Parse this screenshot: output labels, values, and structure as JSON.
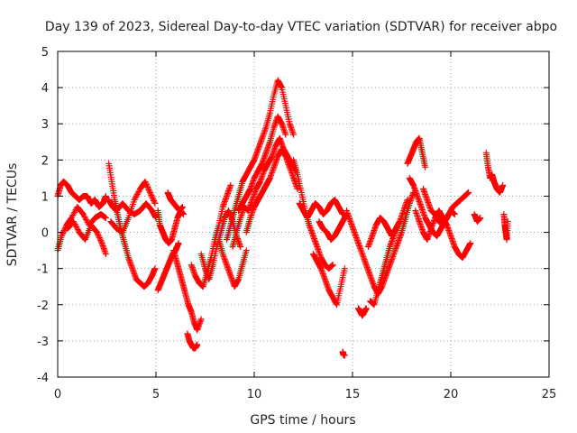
{
  "chart_data": {
    "type": "scatter",
    "title": "Day 139 of 2023, Sidereal Day-to-day VTEC variation (SDTVAR) for receiver abpo",
    "xlabel": "GPS time / hours",
    "ylabel": "SDTVAR / TECUs",
    "xlim": [
      0,
      25
    ],
    "ylim": [
      -4,
      5
    ],
    "xticks": [
      0,
      5,
      10,
      15,
      20,
      25
    ],
    "yticks": [
      -4,
      -3,
      -2,
      -1,
      0,
      1,
      2,
      3,
      4,
      5
    ],
    "grid": true,
    "marker": "plus",
    "color": "#ff0000",
    "series": [
      {
        "name": "SDTVAR",
        "tracks": [
          {
            "x": [
              0.0,
              0.15,
              0.3,
              0.5,
              0.7,
              0.9,
              1.1,
              1.3,
              1.5,
              1.7,
              1.9,
              2.1,
              2.3,
              2.45
            ],
            "y": [
              1.0,
              1.3,
              1.4,
              1.3,
              1.1,
              1.0,
              0.9,
              1.0,
              1.0,
              0.8,
              0.9,
              0.7,
              0.8,
              1.0
            ]
          },
          {
            "x": [
              0.0,
              0.2,
              0.45,
              0.7,
              1.0,
              1.3,
              1.6,
              1.9,
              2.2,
              2.45
            ],
            "y": [
              -0.5,
              -0.1,
              0.2,
              0.4,
              0.7,
              0.5,
              0.2,
              0.4,
              0.5,
              0.4
            ]
          },
          {
            "x": [
              0.5,
              0.8,
              1.1,
              1.4,
              1.7,
              2.0,
              2.25,
              2.45
            ],
            "y": [
              0.1,
              0.3,
              0.0,
              -0.2,
              0.2,
              0.0,
              -0.3,
              -0.6
            ]
          },
          {
            "x": [
              2.6,
              2.75,
              2.9,
              3.05,
              3.2,
              3.4,
              3.6,
              3.8,
              4.0,
              4.2,
              4.4,
              4.6,
              4.8,
              4.95
            ],
            "y": [
              1.9,
              1.4,
              0.9,
              0.5,
              0.1,
              -0.3,
              -0.7,
              -1.0,
              -1.3,
              -1.4,
              -1.5,
              -1.4,
              -1.2,
              -1.0
            ]
          },
          {
            "x": [
              2.6,
              2.8,
              3.0,
              3.3,
              3.6,
              3.9,
              4.2,
              4.5,
              4.8,
              5.0
            ],
            "y": [
              0.9,
              0.7,
              0.6,
              0.8,
              0.6,
              0.5,
              0.6,
              0.8,
              0.6,
              0.4
            ]
          },
          {
            "x": [
              2.7,
              3.0,
              3.3,
              3.6,
              3.9,
              4.2,
              4.45,
              4.7,
              4.95
            ],
            "y": [
              0.3,
              0.1,
              0.0,
              0.4,
              0.9,
              1.2,
              1.4,
              1.1,
              0.8
            ]
          },
          {
            "x": [
              5.1,
              5.2,
              5.35,
              5.5,
              5.65,
              5.8,
              5.95,
              6.1,
              6.25,
              6.4
            ],
            "y": [
              0.6,
              0.2,
              0.0,
              -0.2,
              -0.3,
              -0.2,
              0.1,
              0.4,
              0.6,
              0.5
            ]
          },
          {
            "x": [
              5.1,
              5.25,
              5.4,
              5.55,
              5.7,
              5.85,
              6.0,
              6.15
            ],
            "y": [
              -1.6,
              -1.4,
              -1.2,
              -1.0,
              -0.8,
              -0.6,
              -0.5,
              -0.3
            ]
          },
          {
            "x": [
              5.9,
              6.05,
              6.2,
              6.35,
              6.5,
              6.65,
              6.8,
              6.95,
              7.1,
              7.3
            ],
            "y": [
              -0.5,
              -0.8,
              -1.1,
              -1.4,
              -1.7,
              -2.0,
              -2.2,
              -2.5,
              -2.7,
              -2.4
            ]
          },
          {
            "x": [
              6.6,
              6.7,
              6.8,
              6.9,
              7.0,
              7.1
            ],
            "y": [
              -2.8,
              -3.0,
              -3.1,
              -3.2,
              -3.2,
              -3.1
            ]
          },
          {
            "x": [
              5.6,
              5.75,
              5.9,
              6.05,
              6.2,
              6.35
            ],
            "y": [
              1.1,
              0.9,
              0.8,
              0.7,
              0.6,
              0.7
            ]
          },
          {
            "x": [
              6.8,
              7.0,
              7.2,
              7.4,
              7.6,
              7.8,
              8.0,
              8.2,
              8.4,
              8.6,
              8.8
            ],
            "y": [
              -0.9,
              -1.2,
              -1.4,
              -1.5,
              -1.1,
              -0.7,
              -0.2,
              0.2,
              0.7,
              1.0,
              1.3
            ]
          },
          {
            "x": [
              7.3,
              7.5,
              7.7,
              7.9,
              8.1,
              8.3,
              8.5,
              8.7,
              8.9,
              9.1,
              9.3
            ],
            "y": [
              -0.6,
              -1.0,
              -1.3,
              -0.9,
              -0.4,
              0.0,
              0.4,
              0.6,
              0.3,
              -0.1,
              -0.4
            ]
          },
          {
            "x": [
              8.2,
              8.4,
              8.6,
              8.8,
              9.0,
              9.2,
              9.4,
              9.6
            ],
            "y": [
              -0.2,
              -0.6,
              -0.9,
              -1.2,
              -1.5,
              -1.3,
              -0.9,
              -0.5
            ]
          },
          {
            "x": [
              8.6,
              8.8,
              9.0,
              9.2,
              9.4,
              9.6,
              9.8,
              10.0,
              10.2,
              10.4,
              10.6,
              10.8,
              11.0,
              11.2,
              11.4,
              11.6,
              11.8,
              12.0
            ],
            "y": [
              -0.2,
              0.2,
              0.6,
              1.0,
              1.4,
              1.6,
              1.8,
              2.0,
              2.3,
              2.6,
              2.9,
              3.3,
              3.8,
              4.2,
              4.0,
              3.5,
              3.0,
              2.7
            ]
          },
          {
            "x": [
              9.2,
              9.4,
              9.6,
              9.8,
              10.0,
              10.2,
              10.4,
              10.6,
              10.8,
              11.0,
              11.2,
              11.4,
              11.6
            ],
            "y": [
              0.6,
              0.8,
              1.0,
              1.2,
              1.5,
              1.7,
              1.9,
              2.2,
              2.5,
              2.9,
              3.2,
              3.0,
              2.7
            ]
          },
          {
            "x": [
              8.9,
              9.1,
              9.3,
              9.5,
              9.7,
              9.9,
              10.1,
              10.3,
              10.5,
              10.7,
              10.9,
              11.1,
              11.3,
              11.5,
              11.7,
              11.9,
              12.1
            ],
            "y": [
              -0.4,
              0.0,
              0.4,
              0.7,
              0.6,
              0.9,
              1.2,
              1.4,
              1.7,
              1.9,
              2.1,
              2.4,
              2.6,
              2.3,
              2.1,
              1.9,
              1.7
            ]
          },
          {
            "x": [
              9.6,
              9.8,
              10.0,
              10.2,
              10.4,
              10.6,
              10.8,
              11.0,
              11.2,
              11.4,
              11.6,
              11.8,
              12.0,
              12.2
            ],
            "y": [
              0.0,
              0.4,
              0.7,
              0.9,
              1.1,
              1.3,
              1.5,
              1.8,
              2.1,
              2.3,
              2.1,
              1.8,
              1.5,
              1.2
            ]
          },
          {
            "x": [
              12.0,
              12.2,
              12.4,
              12.6,
              12.8,
              13.0,
              13.2,
              13.4,
              13.6,
              13.8,
              14.0
            ],
            "y": [
              2.0,
              1.6,
              1.1,
              0.6,
              0.2,
              -0.1,
              -0.4,
              -0.7,
              -0.9,
              -1.0,
              -0.9
            ]
          },
          {
            "x": [
              12.3,
              12.5,
              12.7,
              12.9,
              13.1,
              13.3,
              13.5,
              13.7,
              13.9,
              14.1,
              14.3,
              14.5
            ],
            "y": [
              0.8,
              0.6,
              0.4,
              0.6,
              0.8,
              0.7,
              0.5,
              0.6,
              0.8,
              0.9,
              0.7,
              0.5
            ]
          },
          {
            "x": [
              13.0,
              13.2,
              13.4,
              13.6,
              13.8,
              14.0,
              14.2,
              14.4,
              14.6
            ],
            "y": [
              -0.6,
              -0.8,
              -1.0,
              -1.3,
              -1.6,
              -1.8,
              -2.0,
              -1.5,
              -1.0
            ]
          },
          {
            "x": [
              13.3,
              13.5,
              13.7,
              13.9,
              14.1,
              14.3,
              14.5,
              14.7
            ],
            "y": [
              0.3,
              0.1,
              0.0,
              -0.2,
              -0.1,
              0.1,
              0.3,
              0.5
            ]
          },
          {
            "x": [
              14.5,
              14.55,
              14.6
            ],
            "y": [
              -3.3,
              -3.4,
              -3.4
            ]
          },
          {
            "x": [
              14.7,
              14.9,
              15.1,
              15.3,
              15.5,
              15.7,
              15.9,
              16.1,
              16.3,
              16.5,
              16.7,
              16.9,
              17.1,
              17.3,
              17.5,
              17.7,
              17.9,
              18.1
            ],
            "y": [
              0.6,
              0.3,
              0.0,
              -0.3,
              -0.6,
              -0.9,
              -1.2,
              -1.5,
              -1.7,
              -1.5,
              -1.2,
              -0.9,
              -0.6,
              -0.3,
              0.0,
              0.4,
              0.8,
              1.1
            ]
          },
          {
            "x": [
              15.3,
              15.4,
              15.5,
              15.6,
              15.7
            ],
            "y": [
              -2.1,
              -2.2,
              -2.3,
              -2.2,
              -2.1
            ]
          },
          {
            "x": [
              15.8,
              16.0,
              16.2,
              16.4,
              16.6,
              16.8,
              17.0,
              17.2,
              17.4,
              17.6,
              17.8
            ],
            "y": [
              -0.4,
              -0.1,
              0.2,
              0.4,
              0.3,
              0.1,
              -0.1,
              0.1,
              0.3,
              0.6,
              0.9
            ]
          },
          {
            "x": [
              15.9,
              16.1,
              16.3,
              16.5,
              16.7,
              16.9,
              17.1,
              17.3
            ],
            "y": [
              -1.9,
              -2.0,
              -1.6,
              -1.2,
              -0.8,
              -0.4,
              -0.1,
              0.2
            ]
          },
          {
            "x": [
              17.8,
              17.95,
              18.1,
              18.25,
              18.4,
              18.55,
              18.7
            ],
            "y": [
              1.9,
              2.1,
              2.3,
              2.5,
              2.6,
              2.2,
              1.8
            ]
          },
          {
            "x": [
              17.9,
              18.1,
              18.3,
              18.5,
              18.7,
              18.9,
              19.1,
              19.3,
              19.5,
              19.7,
              19.9,
              20.1,
              20.3,
              20.5,
              20.7,
              20.9
            ],
            "y": [
              1.5,
              1.3,
              1.0,
              0.7,
              0.4,
              0.2,
              0.0,
              -0.1,
              0.1,
              0.3,
              0.5,
              0.7,
              0.8,
              0.9,
              1.0,
              1.1
            ]
          },
          {
            "x": [
              18.2,
              18.4,
              18.6,
              18.8,
              19.0,
              19.2,
              19.4,
              19.6,
              19.8,
              20.0,
              20.2,
              20.4,
              20.6,
              20.8,
              21.0
            ],
            "y": [
              0.6,
              0.3,
              0.0,
              -0.2,
              0.1,
              0.4,
              0.6,
              0.4,
              0.2,
              -0.1,
              -0.4,
              -0.6,
              -0.7,
              -0.5,
              -0.3
            ]
          },
          {
            "x": [
              18.6,
              18.8,
              19.0,
              19.2,
              19.4,
              19.6,
              19.8,
              20.0,
              20.2
            ],
            "y": [
              1.2,
              0.9,
              0.6,
              0.5,
              0.3,
              0.2,
              0.4,
              0.6,
              0.5
            ]
          },
          {
            "x": [
              21.2,
              21.35,
              21.5
            ],
            "y": [
              0.5,
              0.3,
              0.4
            ]
          },
          {
            "x": [
              21.8,
              21.9,
              22.0,
              22.1,
              22.2,
              22.35,
              22.5,
              22.65
            ],
            "y": [
              2.2,
              1.8,
              1.5,
              1.6,
              1.4,
              1.2,
              1.1,
              1.3
            ]
          },
          {
            "x": [
              22.7,
              22.75,
              22.8,
              22.85,
              22.9
            ],
            "y": [
              0.5,
              0.2,
              0.0,
              -0.2,
              0.3
            ]
          }
        ]
      }
    ]
  }
}
